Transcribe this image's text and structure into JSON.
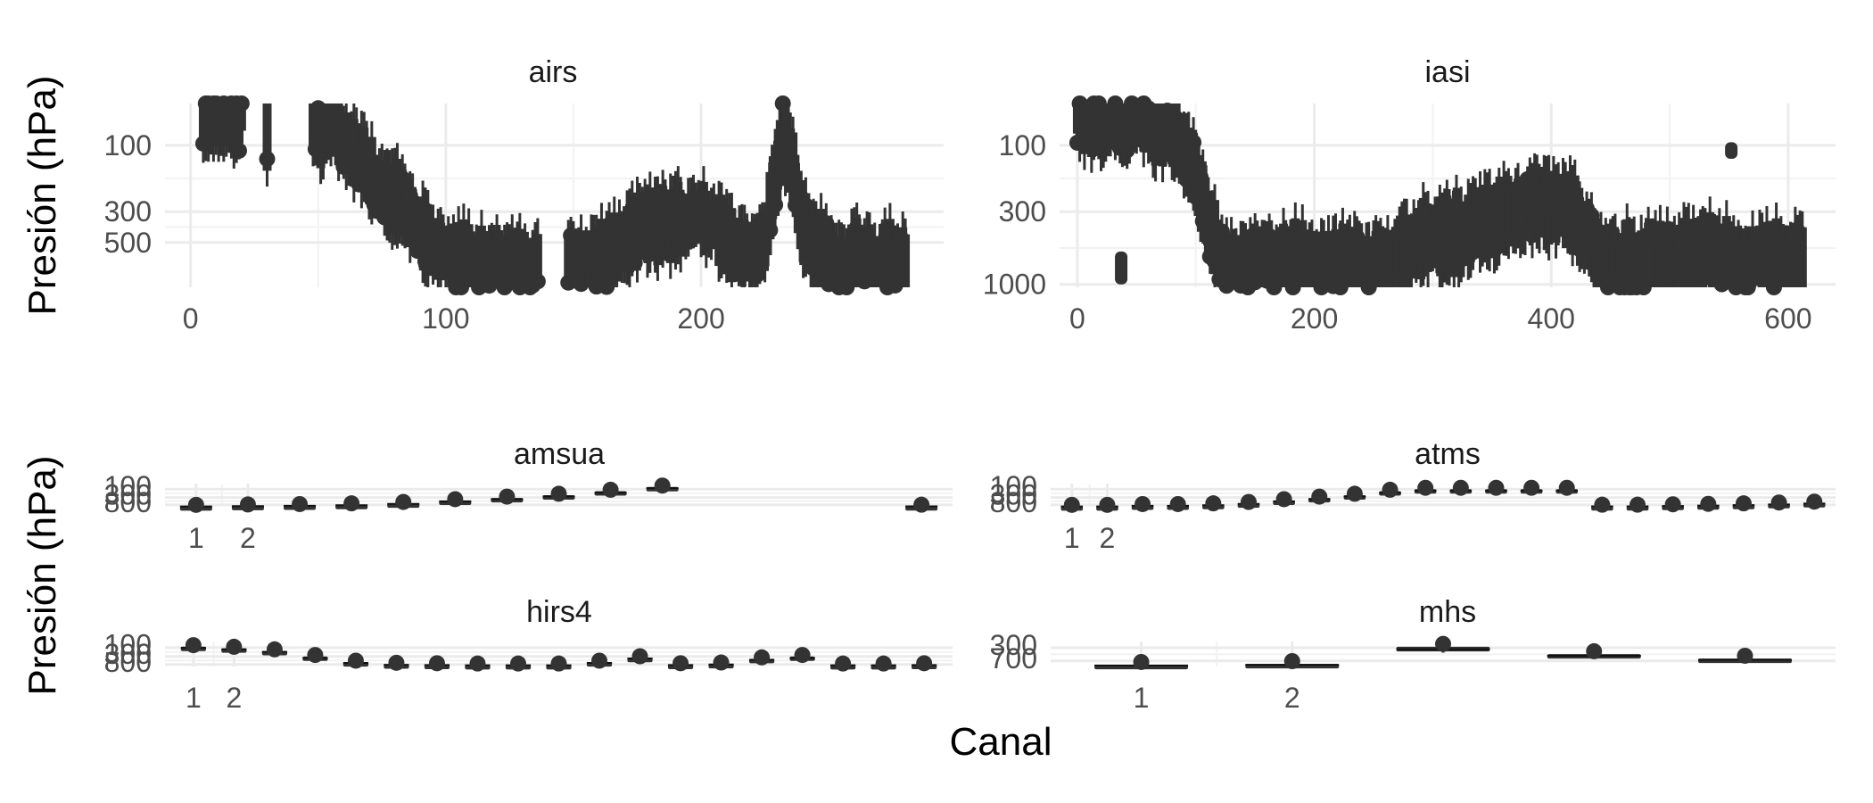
{
  "chart_data": {
    "type": "boxplot",
    "xlabel": "Canal",
    "ylabel": "Presión (hPa)",
    "y_scale": "reversed-log",
    "color": "#333333",
    "panels": [
      {
        "name": "airs",
        "title": "airs",
        "xlim": [
          -10,
          295
        ],
        "ylim": [
          50,
          1050
        ],
        "x_ticks": [
          0,
          100,
          200
        ],
        "x_tick_labels": [
          "0",
          "100",
          "200"
        ],
        "y_ticks": [
          100,
          300,
          500
        ],
        "y_tick_labels": [
          "100",
          "300",
          "500"
        ],
        "grid": true,
        "anchors": [
          [
            5,
            65
          ],
          [
            20,
            70
          ],
          [
            30,
            80
          ],
          [
            48,
            72
          ],
          [
            55,
            72
          ],
          [
            60,
            85
          ],
          [
            65,
            120
          ],
          [
            70,
            160
          ],
          [
            75,
            190
          ],
          [
            80,
            220
          ],
          [
            85,
            260
          ],
          [
            90,
            420
          ],
          [
            95,
            560
          ],
          [
            100,
            650
          ],
          [
            110,
            700
          ],
          [
            120,
            720
          ],
          [
            130,
            700
          ],
          [
            140,
            740
          ],
          [
            150,
            720
          ],
          [
            160,
            700
          ],
          [
            165,
            600
          ],
          [
            170,
            520
          ],
          [
            175,
            430
          ],
          [
            180,
            380
          ],
          [
            190,
            340
          ],
          [
            200,
            330
          ],
          [
            210,
            420
          ],
          [
            220,
            650
          ],
          [
            225,
            520
          ],
          [
            228,
            240
          ],
          [
            232,
            80
          ],
          [
            236,
            150
          ],
          [
            240,
            400
          ],
          [
            245,
            560
          ],
          [
            255,
            680
          ],
          [
            270,
            700
          ],
          [
            280,
            680
          ]
        ],
        "gaps": [
          [
            20,
            30
          ],
          [
            30,
            48
          ],
          [
            136,
            148
          ]
        ],
        "x_range": [
          5,
          280
        ],
        "step": 1
      },
      {
        "name": "iasi",
        "title": "iasi",
        "xlim": [
          -15,
          640
        ],
        "ylim": [
          50,
          1050
        ],
        "x_ticks": [
          0,
          200,
          400,
          600
        ],
        "x_tick_labels": [
          "0",
          "200",
          "400",
          "600"
        ],
        "y_ticks": [
          100,
          300,
          1000
        ],
        "y_tick_labels": [
          "100",
          "300",
          "1000"
        ],
        "grid": true,
        "anchors": [
          [
            0,
            60
          ],
          [
            40,
            65
          ],
          [
            80,
            75
          ],
          [
            100,
            170
          ],
          [
            115,
            450
          ],
          [
            130,
            750
          ],
          [
            150,
            720
          ],
          [
            200,
            700
          ],
          [
            250,
            680
          ],
          [
            270,
            650
          ],
          [
            290,
            480
          ],
          [
            320,
            430
          ],
          [
            350,
            350
          ],
          [
            370,
            300
          ],
          [
            400,
            260
          ],
          [
            420,
            320
          ],
          [
            440,
            650
          ],
          [
            480,
            700
          ],
          [
            520,
            650
          ],
          [
            540,
            600
          ],
          [
            550,
            700
          ],
          [
            600,
            690
          ],
          [
            613,
            680
          ]
        ],
        "x_range": [
          0,
          613
        ],
        "step": 2,
        "special_boxes": [
          {
            "x": 37,
            "low": 580,
            "high": 1000
          },
          {
            "x": 552,
            "low": 95,
            "high": 125
          }
        ]
      },
      {
        "name": "amsua",
        "title": "amsua",
        "xlim": [
          0.4,
          15.6
        ],
        "ylim": [
          48,
          1020
        ],
        "x_ticks": [
          1,
          2
        ],
        "x_tick_labels": [
          "1",
          "2"
        ],
        "y_ticks": [
          100,
          300,
          800
        ],
        "y_tick_labels": [
          "100",
          "300",
          "800"
        ],
        "grid": true,
        "boxes": [
          [
            1,
            950,
            975,
            1000
          ],
          [
            2,
            900,
            940,
            990
          ],
          [
            3,
            860,
            900,
            950
          ],
          [
            4,
            780,
            830,
            880
          ],
          [
            5,
            650,
            700,
            760
          ],
          [
            6,
            450,
            500,
            560
          ],
          [
            7,
            320,
            370,
            430
          ],
          [
            8,
            220,
            260,
            300
          ],
          [
            9,
            130,
            160,
            190
          ],
          [
            10,
            75,
            88,
            100
          ],
          [
            15,
            930,
            960,
            1000
          ]
        ]
      },
      {
        "name": "atms",
        "title": "atms",
        "xlim": [
          0.4,
          22.6
        ],
        "ylim": [
          48,
          1020
        ],
        "x_ticks": [
          1,
          2
        ],
        "x_tick_labels": [
          "1",
          "2"
        ],
        "y_ticks": [
          100,
          300,
          800
        ],
        "y_tick_labels": [
          "100",
          "300",
          "800"
        ],
        "grid": true,
        "boxes": [
          [
            1,
            950,
            975,
            1000
          ],
          [
            2,
            950,
            975,
            1000
          ],
          [
            3,
            860,
            900,
            950
          ],
          [
            4,
            860,
            900,
            950
          ],
          [
            5,
            780,
            830,
            880
          ],
          [
            6,
            650,
            700,
            760
          ],
          [
            7,
            450,
            500,
            560
          ],
          [
            8,
            320,
            370,
            430
          ],
          [
            9,
            220,
            260,
            300
          ],
          [
            10,
            130,
            160,
            190
          ],
          [
            11,
            100,
            120,
            140
          ],
          [
            12,
            100,
            120,
            140
          ],
          [
            13,
            100,
            120,
            140
          ],
          [
            14,
            100,
            120,
            140
          ],
          [
            15,
            100,
            120,
            140
          ],
          [
            16,
            930,
            960,
            1000
          ],
          [
            17,
            930,
            960,
            1000
          ],
          [
            18,
            880,
            920,
            970
          ],
          [
            19,
            830,
            870,
            920
          ],
          [
            20,
            780,
            820,
            870
          ],
          [
            21,
            700,
            750,
            800
          ],
          [
            22,
            620,
            670,
            720
          ]
        ]
      },
      {
        "name": "hirs4",
        "title": "hirs4",
        "xlim": [
          0.3,
          19.7
        ],
        "ylim": [
          48,
          1020
        ],
        "x_ticks": [
          1,
          2
        ],
        "x_tick_labels": [
          "1",
          "2"
        ],
        "y_ticks": [
          100,
          300,
          800
        ],
        "y_tick_labels": [
          "100",
          "300",
          "800"
        ],
        "grid": true,
        "boxes": [
          [
            1,
            90,
            105,
            120
          ],
          [
            2,
            110,
            125,
            145
          ],
          [
            3,
            150,
            170,
            195
          ],
          [
            4,
            300,
            360,
            420
          ],
          [
            5,
            600,
            660,
            720
          ],
          [
            6,
            780,
            830,
            880
          ],
          [
            7,
            820,
            860,
            900
          ],
          [
            8,
            850,
            880,
            910
          ],
          [
            9,
            850,
            880,
            910
          ],
          [
            10,
            850,
            880,
            910
          ],
          [
            11,
            600,
            660,
            720
          ],
          [
            12,
            350,
            380,
            410
          ],
          [
            13,
            820,
            860,
            900
          ],
          [
            14,
            750,
            800,
            850
          ],
          [
            15,
            400,
            450,
            500
          ],
          [
            16,
            300,
            360,
            420
          ],
          [
            17,
            850,
            880,
            910
          ],
          [
            18,
            850,
            880,
            910
          ],
          [
            19,
            820,
            860,
            900
          ]
        ]
      },
      {
        "name": "mhs",
        "title": "mhs",
        "xlim": [
          0.4,
          5.6
        ],
        "ylim": [
          200,
          1000
        ],
        "x_ticks": [
          1,
          2
        ],
        "x_tick_labels": [
          "1",
          "2"
        ],
        "y_ticks": [
          300,
          700
        ],
        "y_tick_labels": [
          "300",
          "700"
        ],
        "grid": true,
        "boxes": [
          [
            1,
            900,
            940,
            970
          ],
          [
            2,
            850,
            900,
            950
          ],
          [
            3,
            280,
            330,
            380
          ],
          [
            4,
            450,
            500,
            560
          ],
          [
            5,
            600,
            650,
            700
          ]
        ]
      }
    ]
  }
}
